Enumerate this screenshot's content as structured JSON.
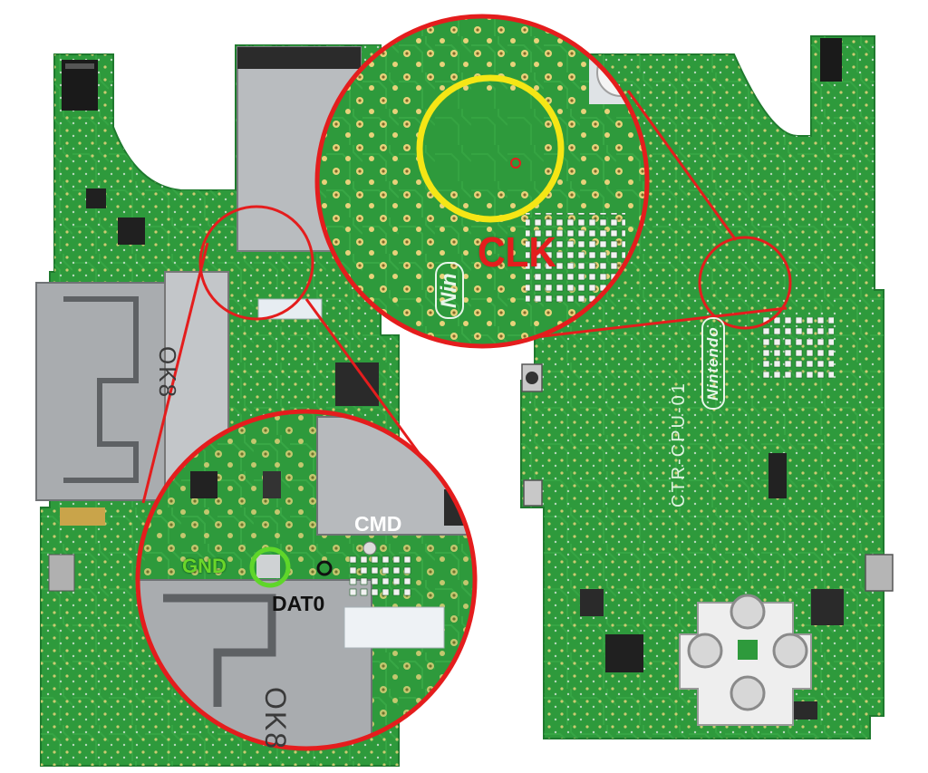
{
  "labels": {
    "clk": "CLK",
    "cmd": "CMD",
    "gnd": "GND",
    "dat0": "DAT0"
  },
  "board_text": {
    "brand": "Nintendo",
    "brand_zoom": "Nin",
    "board_id": "CTR-CPU-01",
    "shield_mark": "OK8",
    "shield_mark_zoom": "OK8"
  },
  "colors": {
    "pcb": "#2e9a3c",
    "pcb_dark": "#1f7a2e",
    "pcb_light": "#4bb556",
    "magnifier_outline": "#e41d1d",
    "clk_highlight": "#f5e615",
    "gnd_highlight": "#5fd62a",
    "dat0_highlight": "#111111",
    "solder_pad": "#e8d27a",
    "shield_metal": "#b9bcbf"
  },
  "icons": [
    "magnifier-circle",
    "solder-pad",
    "test-point"
  ]
}
